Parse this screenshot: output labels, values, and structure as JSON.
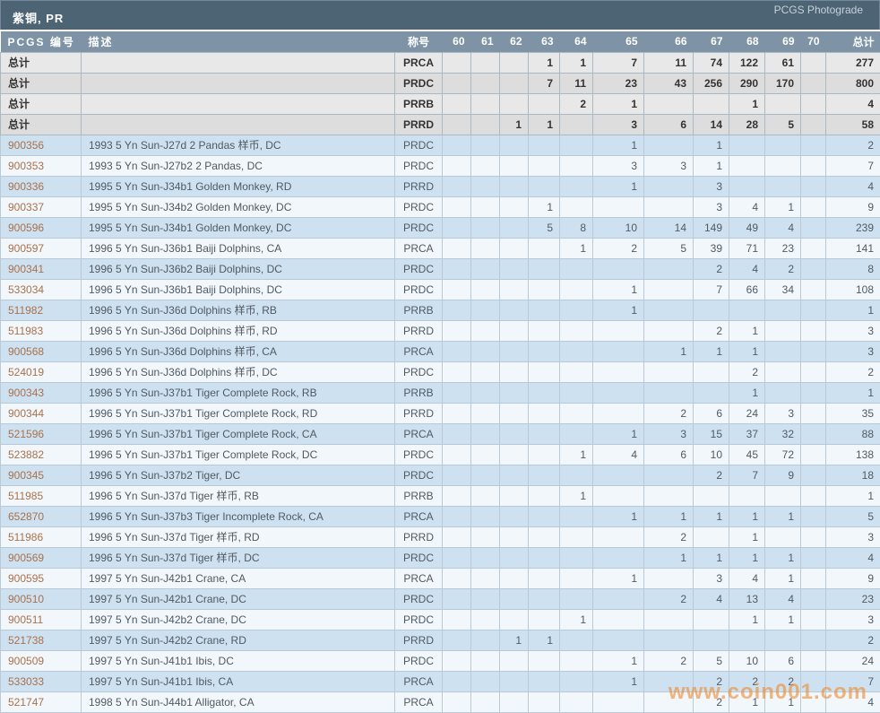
{
  "title_bar": {
    "title": "紫铜, PR",
    "right_link": "PCGS Photograde"
  },
  "columns": {
    "pcgs_label": "PCGS 编号",
    "desc_label": "描述",
    "grade_label": "称号",
    "grade_numbers": [
      "60",
      "61",
      "62",
      "63",
      "64",
      "65",
      "66",
      "67",
      "68",
      "69",
      "70"
    ],
    "total_label": "总计",
    "widths": {
      "pcgs": 90,
      "desc": 350,
      "grade": 53,
      "60": 32,
      "61": 32,
      "62": 32,
      "63": 35,
      "64": 37,
      "65": 57,
      "66": 55,
      "67": 40,
      "68": 40,
      "69": 40,
      "70": 28,
      "total": 61
    }
  },
  "summary_rows": [
    {
      "label": "总计",
      "grade": "PRCA",
      "values": {
        "63": 1,
        "64": 1,
        "65": 7,
        "66": 11,
        "67": 74,
        "68": 122,
        "69": 61
      },
      "total": 277
    },
    {
      "label": "总计",
      "grade": "PRDC",
      "values": {
        "63": 7,
        "64": 11,
        "65": 23,
        "66": 43,
        "67": 256,
        "68": 290,
        "69": 170
      },
      "total": 800
    },
    {
      "label": "总计",
      "grade": "PRRB",
      "values": {
        "64": 2,
        "65": 1,
        "68": 1
      },
      "total": 4
    },
    {
      "label": "总计",
      "grade": "PRRD",
      "values": {
        "62": 1,
        "63": 1,
        "65": 3,
        "66": 6,
        "67": 14,
        "68": 28,
        "69": 5
      },
      "total": 58
    }
  ],
  "rows": [
    {
      "pcgs": "900356",
      "desc": "1993 5 Yn Sun-J27d 2 Pandas 样币, DC",
      "grade": "PRDC",
      "values": {
        "65": 1,
        "67": 1
      },
      "total": 2
    },
    {
      "pcgs": "900353",
      "desc": "1993 5 Yn Sun-J27b2 2 Pandas, DC",
      "grade": "PRDC",
      "values": {
        "65": 3,
        "66": 3,
        "67": 1
      },
      "total": 7
    },
    {
      "pcgs": "900336",
      "desc": "1995 5 Yn Sun-J34b1 Golden Monkey, RD",
      "grade": "PRRD",
      "values": {
        "65": 1,
        "67": 3
      },
      "total": 4
    },
    {
      "pcgs": "900337",
      "desc": "1995 5 Yn Sun-J34b2 Golden Monkey, DC",
      "grade": "PRDC",
      "values": {
        "63": 1,
        "67": 3,
        "68": 4,
        "69": 1
      },
      "total": 9
    },
    {
      "pcgs": "900596",
      "desc": "1995 5 Yn Sun-J34b1 Golden Monkey, DC",
      "grade": "PRDC",
      "values": {
        "63": 5,
        "64": 8,
        "65": 10,
        "66": 14,
        "67": 149,
        "68": 49,
        "69": 4
      },
      "total": 239
    },
    {
      "pcgs": "900597",
      "desc": "1996 5 Yn Sun-J36b1 Baiji Dolphins, CA",
      "grade": "PRCA",
      "values": {
        "64": 1,
        "65": 2,
        "66": 5,
        "67": 39,
        "68": 71,
        "69": 23
      },
      "total": 141
    },
    {
      "pcgs": "900341",
      "desc": "1996 5 Yn Sun-J36b2 Baiji Dolphins, DC",
      "grade": "PRDC",
      "values": {
        "67": 2,
        "68": 4,
        "69": 2
      },
      "total": 8
    },
    {
      "pcgs": "533034",
      "desc": "1996 5 Yn Sun-J36b1 Baiji Dolphins, DC",
      "grade": "PRDC",
      "values": {
        "65": 1,
        "67": 7,
        "68": 66,
        "69": 34
      },
      "total": 108
    },
    {
      "pcgs": "511982",
      "desc": "1996 5 Yn Sun-J36d Dolphins 样币, RB",
      "grade": "PRRB",
      "values": {
        "65": 1
      },
      "total": 1
    },
    {
      "pcgs": "511983",
      "desc": "1996 5 Yn Sun-J36d Dolphins 样币, RD",
      "grade": "PRRD",
      "values": {
        "67": 2,
        "68": 1
      },
      "total": 3
    },
    {
      "pcgs": "900568",
      "desc": "1996 5 Yn Sun-J36d Dolphins 样币, CA",
      "grade": "PRCA",
      "values": {
        "66": 1,
        "67": 1,
        "68": 1
      },
      "total": 3
    },
    {
      "pcgs": "524019",
      "desc": "1996 5 Yn Sun-J36d Dolphins 样币, DC",
      "grade": "PRDC",
      "values": {
        "68": 2
      },
      "total": 2
    },
    {
      "pcgs": "900343",
      "desc": "1996 5 Yn Sun-J37b1 Tiger Complete Rock, RB",
      "grade": "PRRB",
      "values": {
        "68": 1
      },
      "total": 1
    },
    {
      "pcgs": "900344",
      "desc": "1996 5 Yn Sun-J37b1 Tiger Complete Rock, RD",
      "grade": "PRRD",
      "values": {
        "66": 2,
        "67": 6,
        "68": 24,
        "69": 3
      },
      "total": 35
    },
    {
      "pcgs": "521596",
      "desc": "1996 5 Yn Sun-J37b1 Tiger Complete Rock, CA",
      "grade": "PRCA",
      "values": {
        "65": 1,
        "66": 3,
        "67": 15,
        "68": 37,
        "69": 32
      },
      "total": 88
    },
    {
      "pcgs": "523882",
      "desc": "1996 5 Yn Sun-J37b1 Tiger Complete Rock, DC",
      "grade": "PRDC",
      "values": {
        "64": 1,
        "65": 4,
        "66": 6,
        "67": 10,
        "68": 45,
        "69": 72
      },
      "total": 138
    },
    {
      "pcgs": "900345",
      "desc": "1996 5 Yn Sun-J37b2 Tiger, DC",
      "grade": "PRDC",
      "values": {
        "67": 2,
        "68": 7,
        "69": 9
      },
      "total": 18
    },
    {
      "pcgs": "511985",
      "desc": "1996 5 Yn Sun-J37d Tiger 样币, RB",
      "grade": "PRRB",
      "values": {
        "64": 1
      },
      "total": 1
    },
    {
      "pcgs": "652870",
      "desc": "1996 5 Yn Sun-J37b3 Tiger Incomplete Rock, CA",
      "grade": "PRCA",
      "values": {
        "65": 1,
        "66": 1,
        "67": 1,
        "68": 1,
        "69": 1
      },
      "total": 5
    },
    {
      "pcgs": "511986",
      "desc": "1996 5 Yn Sun-J37d Tiger 样币, RD",
      "grade": "PRRD",
      "values": {
        "66": 2,
        "68": 1
      },
      "total": 3
    },
    {
      "pcgs": "900569",
      "desc": "1996 5 Yn Sun-J37d Tiger 样币, DC",
      "grade": "PRDC",
      "values": {
        "66": 1,
        "67": 1,
        "68": 1,
        "69": 1
      },
      "total": 4
    },
    {
      "pcgs": "900595",
      "desc": "1997 5 Yn Sun-J42b1 Crane, CA",
      "grade": "PRCA",
      "values": {
        "65": 1,
        "67": 3,
        "68": 4,
        "69": 1
      },
      "total": 9
    },
    {
      "pcgs": "900510",
      "desc": "1997 5 Yn Sun-J42b1 Crane, DC",
      "grade": "PRDC",
      "values": {
        "66": 2,
        "67": 4,
        "68": 13,
        "69": 4
      },
      "total": 23
    },
    {
      "pcgs": "900511",
      "desc": "1997 5 Yn Sun-J42b2 Crane, DC",
      "grade": "PRDC",
      "values": {
        "64": 1,
        "68": 1,
        "69": 1
      },
      "total": 3
    },
    {
      "pcgs": "521738",
      "desc": "1997 5 Yn Sun-J42b2 Crane, RD",
      "grade": "PRRD",
      "values": {
        "62": 1,
        "63": 1
      },
      "total": 2
    },
    {
      "pcgs": "900509",
      "desc": "1997 5 Yn Sun-J41b1 Ibis, DC",
      "grade": "PRDC",
      "values": {
        "65": 1,
        "66": 2,
        "67": 5,
        "68": 10,
        "69": 6
      },
      "total": 24
    },
    {
      "pcgs": "533033",
      "desc": "1997 5 Yn Sun-J41b1 Ibis, CA",
      "grade": "PRCA",
      "values": {
        "65": 1,
        "67": 2,
        "68": 2,
        "69": 2
      },
      "total": 7
    },
    {
      "pcgs": "521747",
      "desc": "1998 5 Yn Sun-J44b1 Alligator, CA",
      "grade": "PRCA",
      "values": {
        "67": 2,
        "68": 1,
        "69": 1
      },
      "total": 4
    }
  ],
  "watermark": "www.coin001.com",
  "colors": {
    "title_bar_bg": "#4d6474",
    "header_bg": "#7e94a6",
    "summary_row_bg": "#e8e8e8",
    "summary_row_alt_bg": "#dddddd",
    "data_row_blue_bg": "#cde1f1",
    "data_row_light_bg": "#f2f7fb",
    "pcgs_number_color": "#a9714b",
    "watermark_color": "#ef8b2e"
  }
}
